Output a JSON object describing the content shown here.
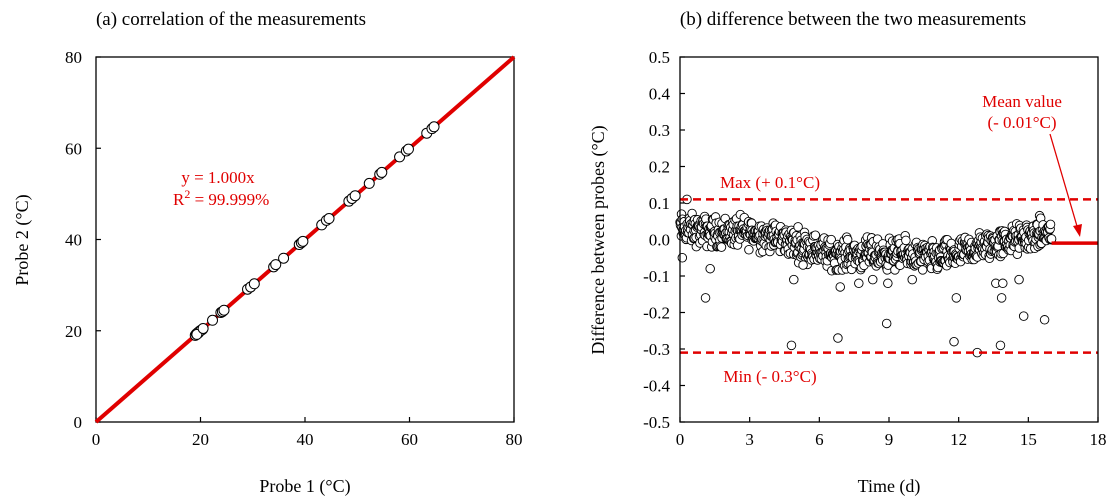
{
  "chart_data": [
    {
      "type": "scatter",
      "title": "(a) correlation of the measurements",
      "xlabel": "Probe 1 (°C)",
      "ylabel": "Probe 2 (°C)",
      "xlim": [
        0,
        80
      ],
      "ylim": [
        0,
        80
      ],
      "xticks": [
        "0",
        "20",
        "40",
        "60",
        "80"
      ],
      "yticks": [
        "0",
        "20",
        "40",
        "60",
        "80"
      ],
      "fit_line": {
        "slope": 1.0,
        "color": "#e00000"
      },
      "annotation": {
        "line1": "y = 1.000x",
        "r2_label": "R",
        "r2_sup": "2",
        "r2_value": " = 99.999%"
      },
      "points": [
        [
          19.0,
          19.0
        ],
        [
          19.2,
          19.3
        ],
        [
          19.4,
          19.4
        ],
        [
          19.6,
          19.5
        ],
        [
          19.8,
          19.9
        ],
        [
          20.0,
          20.0
        ],
        [
          20.2,
          20.2
        ],
        [
          20.4,
          20.3
        ],
        [
          19.5,
          19.6
        ],
        [
          20.1,
          20.1
        ],
        [
          19.3,
          19.2
        ],
        [
          20.5,
          20.5
        ],
        [
          22.3,
          22.3
        ],
        [
          23.9,
          24.0
        ],
        [
          24.2,
          24.2
        ],
        [
          24.5,
          24.5
        ],
        [
          29.0,
          29.1
        ],
        [
          29.6,
          29.6
        ],
        [
          30.3,
          30.3
        ],
        [
          34.0,
          34.0
        ],
        [
          34.4,
          34.5
        ],
        [
          35.9,
          35.9
        ],
        [
          38.9,
          38.9
        ],
        [
          39.3,
          39.3
        ],
        [
          39.6,
          39.6
        ],
        [
          43.2,
          43.2
        ],
        [
          44.1,
          44.2
        ],
        [
          44.6,
          44.6
        ],
        [
          48.4,
          48.4
        ],
        [
          49.0,
          49.0
        ],
        [
          49.6,
          49.6
        ],
        [
          52.3,
          52.3
        ],
        [
          54.3,
          54.3
        ],
        [
          54.7,
          54.7
        ],
        [
          58.1,
          58.1
        ],
        [
          59.4,
          59.4
        ],
        [
          59.8,
          59.8
        ],
        [
          63.3,
          63.3
        ],
        [
          64.3,
          64.3
        ],
        [
          64.7,
          64.7
        ]
      ]
    },
    {
      "type": "scatter",
      "title": "(b) difference between the two measurements",
      "xlabel": "Time (d)",
      "ylabel": "Difference between probes (°C)",
      "xlim": [
        0,
        18
      ],
      "ylim": [
        -0.5,
        0.5
      ],
      "xticks": [
        "0",
        "3",
        "6",
        "9",
        "12",
        "15",
        "18"
      ],
      "yticks": [
        "-0.5",
        "-0.4",
        "-0.3",
        "-0.2",
        "-0.1",
        "0.0",
        "0.1",
        "0.2",
        "0.3",
        "0.4",
        "0.5"
      ],
      "max_line": {
        "value": 0.11,
        "label": "Max (+ 0.1°C)"
      },
      "min_line": {
        "value": -0.31,
        "label": "Min (- 0.3°C)"
      },
      "mean_line": {
        "value": -0.01,
        "label_line1": "Mean value",
        "label_line2": "(- 0.01°C)"
      },
      "dense_band": {
        "x_range": [
          0.0,
          16.0
        ],
        "center_points": [
          [
            0.0,
            0.03
          ],
          [
            1.5,
            0.02
          ],
          [
            3.0,
            0.02
          ],
          [
            4.5,
            0.0
          ],
          [
            5.5,
            -0.02
          ],
          [
            6.5,
            -0.04
          ],
          [
            8.0,
            -0.04
          ],
          [
            9.5,
            -0.04
          ],
          [
            11.0,
            -0.05
          ],
          [
            12.0,
            -0.04
          ],
          [
            13.0,
            -0.02
          ],
          [
            14.5,
            0.0
          ],
          [
            16.0,
            0.02
          ]
        ],
        "spread": 0.06,
        "count": 900
      },
      "outliers": [
        [
          0.1,
          -0.05
        ],
        [
          0.3,
          0.11
        ],
        [
          1.1,
          -0.16
        ],
        [
          1.3,
          -0.08
        ],
        [
          4.8,
          -0.29
        ],
        [
          4.9,
          -0.11
        ],
        [
          5.3,
          -0.07
        ],
        [
          6.8,
          -0.27
        ],
        [
          6.9,
          -0.13
        ],
        [
          7.7,
          -0.12
        ],
        [
          8.3,
          -0.11
        ],
        [
          8.9,
          -0.23
        ],
        [
          8.95,
          -0.12
        ],
        [
          10.0,
          -0.11
        ],
        [
          11.8,
          -0.28
        ],
        [
          11.9,
          -0.16
        ],
        [
          12.8,
          -0.31
        ],
        [
          13.6,
          -0.12
        ],
        [
          13.8,
          -0.29
        ],
        [
          13.85,
          -0.16
        ],
        [
          13.9,
          -0.12
        ],
        [
          14.6,
          -0.11
        ],
        [
          14.8,
          -0.21
        ],
        [
          15.7,
          -0.22
        ]
      ]
    }
  ]
}
